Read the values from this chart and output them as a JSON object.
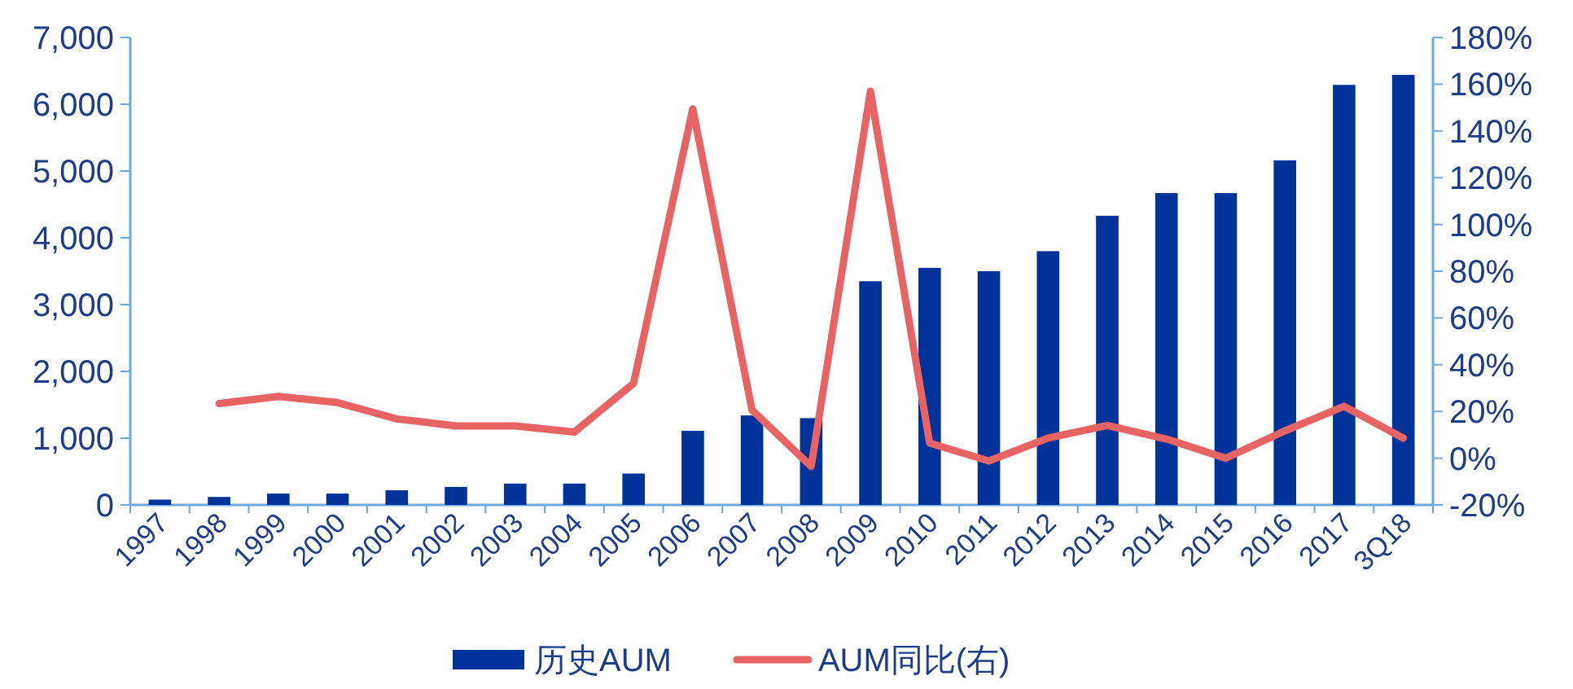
{
  "chart_data": {
    "type": "bar",
    "categories": [
      "1997",
      "1998",
      "1999",
      "2000",
      "2001",
      "2002",
      "2003",
      "2004",
      "2005",
      "2006",
      "2007",
      "2008",
      "2009",
      "2010",
      "2011",
      "2012",
      "2013",
      "2014",
      "2015",
      "2016",
      "2017",
      "3Q18"
    ],
    "series": [
      {
        "name": "历史AUM",
        "color": "#003399",
        "values": [
          80,
          120,
          170,
          170,
          220,
          270,
          320,
          320,
          470,
          1110,
          1340,
          1300,
          3350,
          3550,
          3500,
          3800,
          4330,
          4670,
          4670,
          5160,
          6290,
          6440
        ]
      },
      {
        "name": "AUM同比(右)",
        "type": "line",
        "axis": "y2",
        "color": "#e86464",
        "values": [
          null,
          23.4,
          26.4,
          23.8,
          16.8,
          13.8,
          13.8,
          11.2,
          32,
          149.5,
          20.6,
          -3.5,
          157,
          6.5,
          -1.2,
          8.6,
          14,
          8.2,
          0,
          11.7,
          22.2,
          8.6
        ]
      }
    ],
    "ylim": [
      0,
      7000
    ],
    "yticks": [
      {
        "value": 0,
        "label": "0"
      },
      {
        "value": 1000,
        "label": "1,000"
      },
      {
        "value": 2000,
        "label": "2,000"
      },
      {
        "value": 3000,
        "label": "3,000"
      },
      {
        "value": 4000,
        "label": "4,000"
      },
      {
        "value": 5000,
        "label": "5,000"
      },
      {
        "value": 6000,
        "label": "6,000"
      },
      {
        "value": 7000,
        "label": "7,000"
      }
    ],
    "y2lim": [
      -20,
      180
    ],
    "y2ticks": [
      {
        "value": -20,
        "label": "-20%"
      },
      {
        "value": 0,
        "label": "0%"
      },
      {
        "value": 20,
        "label": "20%"
      },
      {
        "value": 40,
        "label": "40%"
      },
      {
        "value": 60,
        "label": "60%"
      },
      {
        "value": 80,
        "label": "80%"
      },
      {
        "value": 100,
        "label": "100%"
      },
      {
        "value": 120,
        "label": "120%"
      },
      {
        "value": 140,
        "label": "140%"
      },
      {
        "value": 160,
        "label": "160%"
      },
      {
        "value": 180,
        "label": "180%"
      }
    ],
    "grid": false,
    "legend": "bottom"
  }
}
